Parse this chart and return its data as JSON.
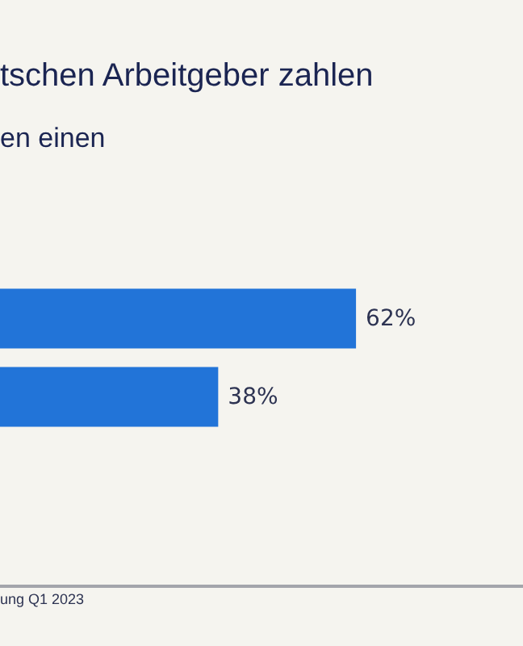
{
  "chart_data": {
    "type": "bar",
    "orientation": "horizontal",
    "title": "tschen Arbeitgeber zahlen",
    "subtitle": "en einen",
    "annotations": [
      "ung Q1 2023"
    ],
    "categories": [
      null,
      null
    ],
    "values": [
      62,
      38
    ],
    "color": "#2274d8",
    "value_labels": [
      "62%",
      "38%"
    ]
  }
}
